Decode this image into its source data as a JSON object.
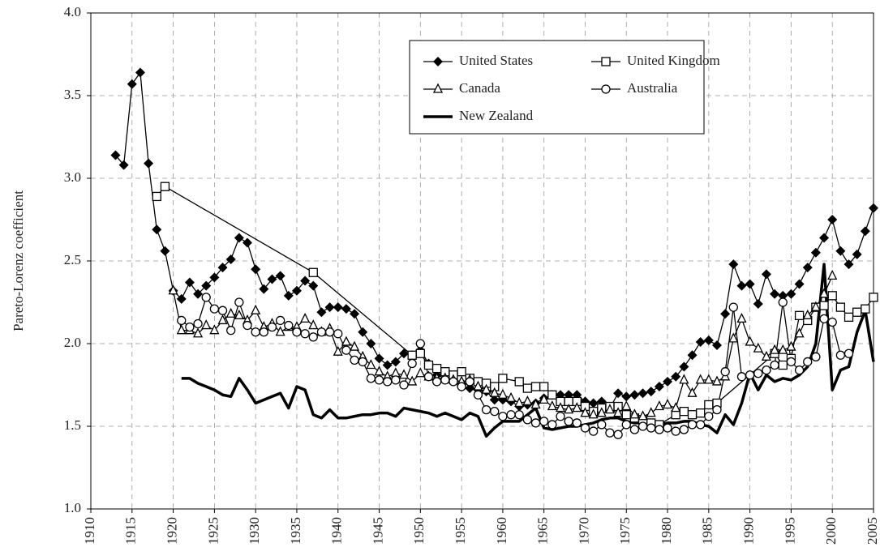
{
  "chart_data": {
    "type": "line",
    "y_label": "Pareto-Lorenz coefficient",
    "xlim": [
      1910,
      2005
    ],
    "xticks": [
      1910,
      1915,
      1920,
      1925,
      1930,
      1935,
      1940,
      1945,
      1950,
      1955,
      1960,
      1965,
      1970,
      1975,
      1980,
      1985,
      1990,
      1995,
      2000,
      2005
    ],
    "ylim": [
      1,
      4
    ],
    "yticks": [
      {
        "value": 1,
        "label": "1.0"
      },
      1.5,
      {
        "value": 2,
        "label": "2.0"
      },
      2.5,
      {
        "value": 3,
        "label": "3.0"
      },
      3.5,
      {
        "value": 4,
        "label": "4.0"
      }
    ],
    "grid": true,
    "legend": "top-right",
    "series": [
      {
        "name": "United States",
        "color": "#000000",
        "marker": "diamond",
        "line_width": 1.3,
        "x": [
          1913,
          1914,
          1915,
          1916,
          1917,
          1918,
          1919,
          1920,
          1921,
          1922,
          1923,
          1924,
          1925,
          1926,
          1927,
          1928,
          1929,
          1930,
          1931,
          1932,
          1933,
          1934,
          1935,
          1936,
          1937,
          1938,
          1939,
          1940,
          1941,
          1942,
          1943,
          1944,
          1945,
          1946,
          1947,
          1948,
          1949,
          1950,
          1951,
          1952,
          1953,
          1954,
          1955,
          1956,
          1957,
          1958,
          1959,
          1960,
          1961,
          1962,
          1963,
          1964,
          1965,
          1966,
          1967,
          1968,
          1969,
          1970,
          1971,
          1972,
          1973,
          1974,
          1975,
          1976,
          1977,
          1978,
          1979,
          1980,
          1981,
          1982,
          1983,
          1984,
          1985,
          1986,
          1987,
          1988,
          1989,
          1990,
          1991,
          1992,
          1993,
          1994,
          1995,
          1996,
          1997,
          1998,
          1999,
          2000,
          2001,
          2002,
          2003,
          2004,
          2005
        ],
        "values": [
          3.14,
          3.08,
          3.57,
          3.64,
          3.09,
          2.69,
          2.56,
          2.32,
          2.27,
          2.37,
          2.3,
          2.35,
          2.4,
          2.46,
          2.51,
          2.64,
          2.61,
          2.45,
          2.33,
          2.39,
          2.41,
          2.29,
          2.32,
          2.38,
          2.35,
          2.19,
          2.22,
          2.22,
          2.21,
          2.18,
          2.07,
          2.0,
          1.91,
          1.87,
          1.89,
          1.94,
          1.93,
          1.96,
          1.88,
          1.81,
          1.79,
          1.78,
          1.74,
          1.73,
          1.72,
          1.71,
          1.66,
          1.66,
          1.65,
          1.62,
          1.63,
          1.64,
          1.67,
          1.69,
          1.69,
          1.69,
          1.69,
          1.65,
          1.64,
          1.65,
          1.61,
          1.7,
          1.68,
          1.69,
          1.7,
          1.71,
          1.74,
          1.77,
          1.8,
          1.86,
          1.93,
          2.01,
          2.02,
          1.99,
          2.18,
          2.48,
          2.35,
          2.36,
          2.24,
          2.42,
          2.3,
          2.29,
          2.3,
          2.36,
          2.46,
          2.55,
          2.64,
          2.75,
          2.56,
          2.48,
          2.54,
          2.68,
          2.82
        ]
      },
      {
        "name": "United Kingdom",
        "color": "#000000",
        "marker": "square",
        "line_width": 1.3,
        "x": [
          1918,
          1919,
          1937,
          1949,
          1950,
          1951,
          1952,
          1953,
          1954,
          1955,
          1956,
          1957,
          1958,
          1959,
          1960,
          1962,
          1963,
          1964,
          1965,
          1966,
          1967,
          1968,
          1969,
          1970,
          1971,
          1972,
          1973,
          1974,
          1975,
          1976,
          1977,
          1978,
          1979,
          1981,
          1982,
          1983,
          1984,
          1985,
          1986,
          1993,
          1994,
          1995,
          1996,
          1997,
          1998,
          1999,
          2000,
          2001,
          2002,
          2003,
          2004,
          2005
        ],
        "values": [
          2.89,
          2.95,
          2.43,
          1.93,
          1.94,
          1.87,
          1.85,
          1.83,
          1.81,
          1.83,
          1.79,
          1.77,
          1.76,
          1.74,
          1.79,
          1.77,
          1.73,
          1.74,
          1.74,
          1.69,
          1.65,
          1.65,
          1.65,
          1.62,
          1.59,
          1.61,
          1.62,
          1.62,
          1.57,
          1.55,
          1.54,
          1.52,
          1.51,
          1.57,
          1.59,
          1.57,
          1.58,
          1.63,
          1.64,
          1.94,
          1.87,
          1.91,
          2.17,
          2.14,
          2.22,
          2.23,
          2.29,
          2.22,
          2.16,
          2.19,
          2.21,
          2.28
        ]
      },
      {
        "name": "Canada",
        "color": "#000000",
        "marker": "triangle",
        "line_width": 1.3,
        "x": [
          1920,
          1921,
          1922,
          1923,
          1924,
          1925,
          1926,
          1927,
          1928,
          1929,
          1930,
          1931,
          1932,
          1933,
          1934,
          1935,
          1936,
          1937,
          1938,
          1939,
          1940,
          1941,
          1942,
          1943,
          1944,
          1945,
          1946,
          1947,
          1948,
          1949,
          1950,
          1951,
          1952,
          1953,
          1954,
          1955,
          1956,
          1957,
          1958,
          1959,
          1960,
          1961,
          1962,
          1963,
          1964,
          1965,
          1966,
          1967,
          1968,
          1969,
          1970,
          1971,
          1972,
          1973,
          1974,
          1975,
          1976,
          1977,
          1978,
          1979,
          1980,
          1981,
          1982,
          1983,
          1984,
          1985,
          1986,
          1987,
          1988,
          1989,
          1990,
          1991,
          1992,
          1993,
          1994,
          1995,
          1996,
          1997,
          1998,
          1999,
          2000
        ],
        "values": [
          2.32,
          2.08,
          2.08,
          2.06,
          2.11,
          2.08,
          2.14,
          2.18,
          2.17,
          2.14,
          2.2,
          2.1,
          2.12,
          2.07,
          2.1,
          2.1,
          2.15,
          2.11,
          2.07,
          2.09,
          1.95,
          2.01,
          1.98,
          1.92,
          1.87,
          1.83,
          1.8,
          1.82,
          1.81,
          1.77,
          1.82,
          1.8,
          1.79,
          1.79,
          1.78,
          1.77,
          1.78,
          1.74,
          1.72,
          1.7,
          1.69,
          1.67,
          1.64,
          1.65,
          1.63,
          1.66,
          1.62,
          1.61,
          1.6,
          1.61,
          1.58,
          1.57,
          1.58,
          1.6,
          1.58,
          1.62,
          1.57,
          1.56,
          1.58,
          1.62,
          1.63,
          1.61,
          1.78,
          1.7,
          1.78,
          1.78,
          1.77,
          1.8,
          2.03,
          2.15,
          2.01,
          1.97,
          1.92,
          1.96,
          1.96,
          1.98,
          2.06,
          2.17,
          2.22,
          2.3,
          2.41
        ]
      },
      {
        "name": "Australia",
        "color": "#000000",
        "marker": "circle",
        "line_width": 1.3,
        "x": [
          1921,
          1922,
          1923,
          1924,
          1925,
          1926,
          1927,
          1928,
          1929,
          1930,
          1931,
          1932,
          1933,
          1934,
          1935,
          1936,
          1937,
          1938,
          1939,
          1940,
          1941,
          1942,
          1943,
          1944,
          1945,
          1946,
          1947,
          1948,
          1949,
          1950,
          1951,
          1952,
          1953,
          1954,
          1955,
          1956,
          1957,
          1958,
          1959,
          1960,
          1961,
          1962,
          1963,
          1964,
          1965,
          1966,
          1967,
          1968,
          1969,
          1970,
          1971,
          1972,
          1973,
          1974,
          1975,
          1976,
          1977,
          1978,
          1979,
          1980,
          1981,
          1982,
          1983,
          1984,
          1985,
          1986,
          1987,
          1988,
          1989,
          1990,
          1991,
          1992,
          1993,
          1994,
          1995,
          1996,
          1997,
          1998,
          1999,
          2000,
          2001,
          2002
        ],
        "values": [
          2.14,
          2.1,
          2.12,
          2.28,
          2.21,
          2.2,
          2.08,
          2.25,
          2.11,
          2.07,
          2.07,
          2.1,
          2.14,
          2.11,
          2.07,
          2.06,
          2.04,
          2.07,
          2.07,
          2.06,
          1.96,
          1.9,
          1.89,
          1.79,
          1.78,
          1.77,
          1.78,
          1.75,
          1.88,
          2.0,
          1.8,
          1.77,
          1.78,
          1.77,
          1.74,
          1.77,
          1.69,
          1.6,
          1.59,
          1.56,
          1.57,
          1.57,
          1.54,
          1.52,
          1.53,
          1.51,
          1.56,
          1.53,
          1.52,
          1.49,
          1.47,
          1.51,
          1.46,
          1.45,
          1.51,
          1.48,
          1.5,
          1.49,
          1.48,
          1.49,
          1.47,
          1.48,
          1.51,
          1.51,
          1.56,
          1.6,
          1.83,
          2.22,
          1.8,
          1.81,
          1.82,
          1.84,
          1.87,
          2.25,
          1.89,
          1.84,
          1.89,
          1.92,
          2.15,
          2.13,
          1.93,
          1.94
        ]
      },
      {
        "name": "New Zealand",
        "color": "#000000",
        "marker": "none",
        "line_width": 3.5,
        "x": [
          1921,
          1922,
          1923,
          1924,
          1925,
          1926,
          1927,
          1928,
          1929,
          1930,
          1931,
          1932,
          1933,
          1934,
          1935,
          1936,
          1937,
          1938,
          1939,
          1940,
          1941,
          1942,
          1943,
          1944,
          1945,
          1946,
          1947,
          1948,
          1949,
          1950,
          1951,
          1952,
          1953,
          1954,
          1955,
          1956,
          1957,
          1958,
          1959,
          1960,
          1961,
          1962,
          1963,
          1964,
          1965,
          1966,
          1967,
          1968,
          1969,
          1970,
          1971,
          1972,
          1973,
          1974,
          1975,
          1976,
          1977,
          1978,
          1979,
          1980,
          1981,
          1982,
          1983,
          1984,
          1985,
          1986,
          1987,
          1988,
          1989,
          1990,
          1991,
          1992,
          1993,
          1994,
          1995,
          1996,
          1997,
          1998,
          1999,
          2000,
          2001,
          2002,
          2003,
          2004,
          2005
        ],
        "values": [
          1.79,
          1.79,
          1.76,
          1.74,
          1.72,
          1.69,
          1.68,
          1.79,
          1.72,
          1.64,
          1.66,
          1.68,
          1.7,
          1.61,
          1.74,
          1.72,
          1.57,
          1.55,
          1.6,
          1.55,
          1.55,
          1.56,
          1.57,
          1.57,
          1.58,
          1.58,
          1.56,
          1.61,
          1.6,
          1.59,
          1.58,
          1.56,
          1.58,
          1.56,
          1.54,
          1.58,
          1.56,
          1.44,
          1.49,
          1.53,
          1.53,
          1.53,
          1.57,
          1.61,
          1.49,
          1.48,
          1.49,
          1.5,
          1.5,
          1.51,
          1.52,
          1.54,
          1.55,
          1.55,
          1.53,
          1.52,
          1.52,
          1.52,
          1.51,
          1.52,
          1.52,
          1.53,
          1.53,
          1.51,
          1.5,
          1.46,
          1.57,
          1.51,
          1.64,
          1.82,
          1.72,
          1.81,
          1.77,
          1.79,
          1.78,
          1.81,
          1.86,
          2.0,
          2.48,
          1.72,
          1.84,
          1.86,
          2.07,
          2.2,
          1.89
        ]
      }
    ]
  }
}
